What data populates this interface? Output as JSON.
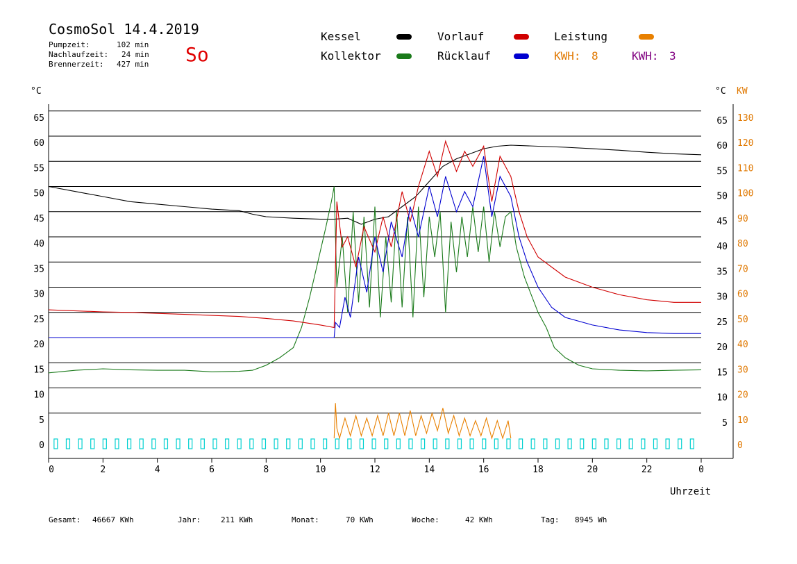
{
  "header": {
    "title": "CosmoSol 14.4.2019",
    "day": "So",
    "times": [
      {
        "label": "Pumpzeit:",
        "value": "102 min"
      },
      {
        "label": "Nachlaufzeit:",
        "value": "24 min"
      },
      {
        "label": "Brennerzeit:",
        "value": "427 min"
      }
    ]
  },
  "legend": {
    "kessel": "Kessel",
    "kollektor": "Kollektor",
    "vorlauf": "Vorlauf",
    "ruecklauf": "Rücklauf",
    "leistung": "Leistung",
    "kwh1_label": "KWH:",
    "kwh1_value": "8",
    "kwh2_label": "KWH:",
    "kwh2_value": "3"
  },
  "axes": {
    "left_unit": "°C",
    "right_unit": "°C",
    "right_unit2": "KW",
    "x_label": "Uhrzeit"
  },
  "footer": [
    {
      "label": "Gesamt:",
      "value": "46667 KWh"
    },
    {
      "label": "Jahr:",
      "value": "211 KWh"
    },
    {
      "label": "Monat:",
      "value": "70 KWh"
    },
    {
      "label": "Woche:",
      "value": "42 KWh"
    },
    {
      "label": "Tag:",
      "value": "8945 Wh"
    }
  ],
  "colors": {
    "kessel": "#000000",
    "kollektor": "#1a7a1a",
    "vorlauf": "#d00000",
    "ruecklauf": "#0000d0",
    "leistung": "#e88000",
    "kwh2": "#800080",
    "pump": "#00d0d0"
  },
  "chart_data": {
    "type": "line",
    "title": "CosmoSol 14.4.2019",
    "xlabel": "Uhrzeit",
    "ylabel": "°C",
    "xlim": [
      0,
      24
    ],
    "ylim": [
      0,
      65
    ],
    "y2lim": [
      0,
      130
    ],
    "y2label": "KW",
    "grid": true,
    "x_ticks": [
      "0",
      "2",
      "4",
      "6",
      "8",
      "10",
      "12",
      "14",
      "16",
      "18",
      "20",
      "22",
      "0"
    ],
    "y_ticks": [
      0,
      5,
      10,
      15,
      20,
      25,
      30,
      35,
      40,
      45,
      50,
      55,
      60,
      65
    ],
    "y2_ticks": [
      0,
      10,
      20,
      30,
      40,
      50,
      60,
      70,
      80,
      90,
      100,
      110,
      120,
      130
    ],
    "series": [
      {
        "name": "Kessel",
        "x": [
          0,
          1,
          2,
          3,
          4,
          5,
          6,
          7,
          7.5,
          8,
          9,
          10,
          10.5,
          11,
          11.5,
          12,
          12.5,
          13,
          13.5,
          14,
          14.5,
          15,
          15.5,
          16,
          16.5,
          17,
          18,
          19,
          20,
          21,
          22,
          23,
          24
        ],
        "y": [
          50,
          49,
          48,
          47,
          46.5,
          46,
          45.5,
          45.2,
          44.5,
          44,
          43.7,
          43.5,
          43.5,
          43.7,
          42.5,
          43.5,
          44,
          46,
          48,
          51,
          54,
          55.5,
          56.5,
          57.5,
          58,
          58.2,
          58,
          57.8,
          57.5,
          57.2,
          56.8,
          56.5,
          56.3
        ]
      },
      {
        "name": "Kollektor",
        "x": [
          0,
          1,
          2,
          3,
          4,
          5,
          6,
          7,
          7.5,
          8,
          8.5,
          9,
          9.3,
          9.6,
          9.9,
          10.2,
          10.4,
          10.5,
          10.6,
          10.8,
          11,
          11.2,
          11.4,
          11.6,
          11.8,
          12,
          12.2,
          12.4,
          12.6,
          12.8,
          13,
          13.2,
          13.4,
          13.6,
          13.8,
          14,
          14.2,
          14.4,
          14.6,
          14.8,
          15,
          15.2,
          15.4,
          15.6,
          15.8,
          16,
          16.2,
          16.4,
          16.6,
          16.8,
          17,
          17.2,
          17.5,
          18,
          18.3,
          18.6,
          19,
          19.5,
          20,
          21,
          22,
          23,
          24
        ],
        "y": [
          13,
          13.5,
          13.8,
          13.6,
          13.5,
          13.5,
          13.2,
          13.3,
          13.5,
          14.5,
          16,
          18,
          22,
          28,
          35,
          42,
          47,
          50,
          30,
          40,
          25,
          45,
          27,
          44,
          26,
          46,
          24,
          40,
          27,
          45,
          26,
          44,
          24,
          46,
          28,
          44,
          36,
          45,
          25,
          43,
          33,
          44,
          36,
          46,
          37,
          46,
          35,
          45,
          38,
          44,
          45,
          38,
          32,
          25,
          22,
          18,
          16,
          14.5,
          13.8,
          13.5,
          13.4,
          13.5,
          13.6
        ]
      },
      {
        "name": "Vorlauf",
        "x": [
          0,
          1,
          2,
          3,
          4,
          5,
          6,
          7,
          8,
          9,
          10,
          10.5,
          10.55,
          10.6,
          10.8,
          11,
          11.3,
          11.6,
          12,
          12.3,
          12.6,
          13,
          13.3,
          13.6,
          14,
          14.3,
          14.6,
          15,
          15.3,
          15.6,
          16,
          16.3,
          16.6,
          17,
          17.3,
          17.6,
          18,
          18.5,
          19,
          20,
          21,
          22,
          23,
          24
        ],
        "y": [
          25.5,
          25.3,
          25.1,
          25,
          24.8,
          24.6,
          24.4,
          24.2,
          23.8,
          23.3,
          22.5,
          22,
          34,
          47,
          38,
          40,
          34,
          42,
          37,
          44,
          38,
          49,
          43,
          50,
          57,
          52,
          59,
          53,
          57,
          54,
          58,
          47,
          56,
          52,
          45,
          40,
          36,
          34,
          32,
          30,
          28.5,
          27.5,
          27,
          27
        ]
      },
      {
        "name": "Rücklauf",
        "x": [
          0,
          1,
          2,
          3,
          4,
          5,
          6,
          7,
          8,
          9,
          10,
          10.5,
          10.55,
          10.7,
          10.9,
          11.1,
          11.4,
          11.7,
          12,
          12.3,
          12.6,
          13,
          13.3,
          13.6,
          14,
          14.3,
          14.6,
          15,
          15.3,
          15.6,
          16,
          16.3,
          16.6,
          17,
          17.3,
          17.6,
          18,
          18.5,
          19,
          20,
          21,
          22,
          23,
          24
        ],
        "y": [
          20,
          20,
          20,
          20,
          20,
          20,
          20,
          20,
          20,
          20,
          20,
          20,
          23,
          22,
          28,
          24,
          36,
          29,
          40,
          33,
          43,
          36,
          46,
          40,
          50,
          44,
          52,
          45,
          49,
          46,
          56,
          44,
          52,
          48,
          40,
          35,
          30,
          26,
          24,
          22.5,
          21.5,
          21,
          20.8,
          20.8
        ]
      },
      {
        "name": "Leistung",
        "x": [
          10.5,
          10.55,
          10.6,
          10.7,
          10.9,
          11.1,
          11.3,
          11.5,
          11.7,
          11.9,
          12.1,
          12.3,
          12.5,
          12.7,
          12.9,
          13.1,
          13.3,
          13.5,
          13.7,
          13.9,
          14.1,
          14.3,
          14.5,
          14.7,
          14.9,
          15.1,
          15.3,
          15.5,
          15.7,
          15.9,
          16.1,
          16.3,
          16.5,
          16.7,
          16.9,
          17.0
        ],
        "y": [
          0,
          14,
          4,
          0,
          8,
          1,
          9,
          1,
          8,
          1,
          9,
          1,
          10,
          1,
          10,
          1,
          11,
          1,
          9,
          2,
          10,
          3,
          12,
          2,
          9,
          1,
          8,
          1,
          7,
          1,
          8,
          0,
          7,
          0,
          7,
          0
        ]
      }
    ]
  }
}
